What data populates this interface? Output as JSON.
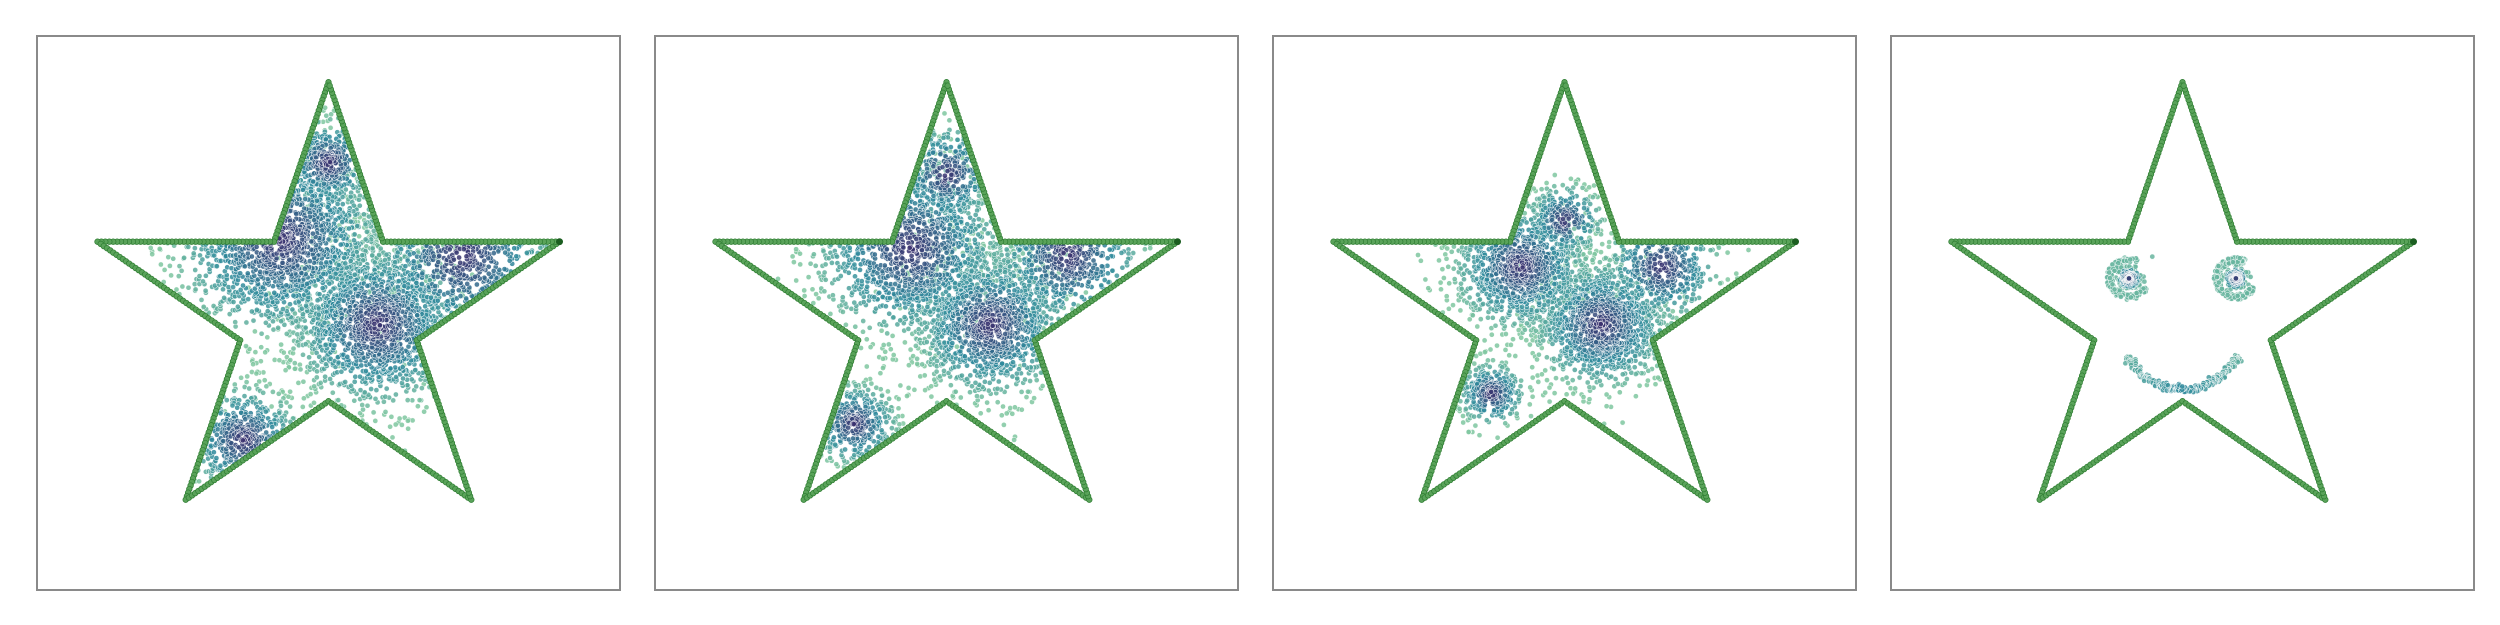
{
  "figure": {
    "background": "#ffffff",
    "frame_color": "#8a8a8a"
  },
  "star_outline": {
    "color": "#5aa35a",
    "edge_color": "#2e7d32",
    "dot_color": "#1b5e20",
    "vertices": [
      [
        0,
        100
      ],
      [
        -22.45,
        30.9
      ],
      [
        -95.1,
        30.9
      ],
      [
        -36.33,
        -11.8
      ],
      [
        -58.78,
        -80.9
      ],
      [
        0,
        -38.2
      ],
      [
        58.78,
        -80.9
      ],
      [
        36.33,
        -11.8
      ],
      [
        95.1,
        30.9
      ],
      [
        22.45,
        30.9
      ]
    ]
  },
  "colormap": {
    "name": "viridis",
    "low": "#7fc7a0",
    "mid": "#2f8a9c",
    "high": "#3b2f6e"
  },
  "chart_data": [
    {
      "type": "scatter",
      "panel": 1,
      "xlim": [
        -120,
        120
      ],
      "ylim": [
        -120,
        120
      ],
      "title": "",
      "xlabel": "",
      "ylabel": "",
      "grid": false,
      "clusters": [
        {
          "x": -20,
          "y": 32,
          "sd": 22,
          "n": 1400
        },
        {
          "x": 20,
          "y": -5,
          "sd": 18,
          "n": 1500
        },
        {
          "x": -35,
          "y": -55,
          "sd": 12,
          "n": 400
        },
        {
          "x": 55,
          "y": 25,
          "sd": 20,
          "n": 500
        },
        {
          "x": 0,
          "y": 65,
          "sd": 10,
          "n": 350
        }
      ]
    },
    {
      "type": "scatter",
      "panel": 2,
      "xlim": [
        -120,
        120
      ],
      "ylim": [
        -120,
        120
      ],
      "title": "",
      "xlabel": "",
      "ylabel": "",
      "grid": false,
      "clusters": [
        {
          "x": -15,
          "y": 28,
          "sd": 20,
          "n": 1200
        },
        {
          "x": 18,
          "y": -5,
          "sd": 16,
          "n": 1300
        },
        {
          "x": -38,
          "y": -48,
          "sd": 9,
          "n": 350
        },
        {
          "x": 50,
          "y": 25,
          "sd": 16,
          "n": 450
        },
        {
          "x": 0,
          "y": 60,
          "sd": 11,
          "n": 300
        }
      ]
    },
    {
      "type": "scatter",
      "panel": 3,
      "xlim": [
        -120,
        120
      ],
      "ylim": [
        -120,
        120
      ],
      "title": "",
      "xlabel": "",
      "ylabel": "",
      "grid": false,
      "clusters": [
        {
          "x": -18,
          "y": 20,
          "sd": 14,
          "n": 1100
        },
        {
          "x": 15,
          "y": -5,
          "sd": 14,
          "n": 1200
        },
        {
          "x": -30,
          "y": -35,
          "sd": 7,
          "n": 300
        },
        {
          "x": 40,
          "y": 20,
          "sd": 12,
          "n": 400
        },
        {
          "x": 0,
          "y": 40,
          "sd": 8,
          "n": 250
        }
      ]
    },
    {
      "type": "scatter",
      "panel": 4,
      "xlim": [
        -120,
        120
      ],
      "ylim": [
        -120,
        120
      ],
      "title": "",
      "xlabel": "",
      "ylabel": "",
      "grid": false,
      "face": {
        "left_eye_center": [
          -22,
          15
        ],
        "right_eye_center": [
          22,
          15
        ],
        "eye_radius": 8,
        "eye_points": 420,
        "smile_center": [
          0,
          -8
        ],
        "smile_radius": 25,
        "smile_start_deg": 205,
        "smile_end_deg": 335,
        "smile_points": 260
      }
    }
  ]
}
